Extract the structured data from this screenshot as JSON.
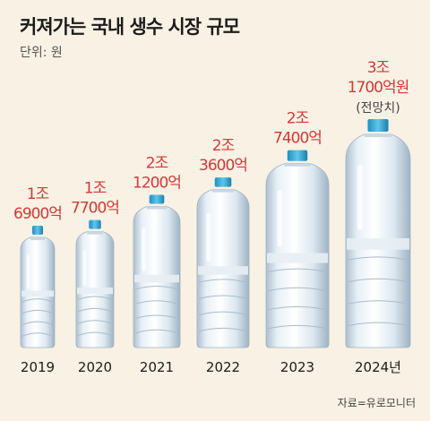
{
  "title": "커져가는 국내 생수 시장 규모",
  "unit": "단위: 원",
  "source": "자료=유로모니터",
  "chart_data": {
    "type": "bar",
    "unit": "원",
    "categories": [
      "2019",
      "2020",
      "2021",
      "2022",
      "2023",
      "2024년"
    ],
    "values": [
      1.69,
      1.77,
      2.12,
      2.36,
      2.74,
      3.17
    ],
    "value_labels": [
      [
        "1조",
        "6900억"
      ],
      [
        "1조",
        "7700억"
      ],
      [
        "2조",
        "1200억"
      ],
      [
        "2조",
        "3600억"
      ],
      [
        "2조",
        "7400억"
      ],
      [
        "3조",
        "1700억원"
      ]
    ],
    "notes": [
      "",
      "",
      "",
      "",
      "",
      "(전망치)"
    ]
  }
}
